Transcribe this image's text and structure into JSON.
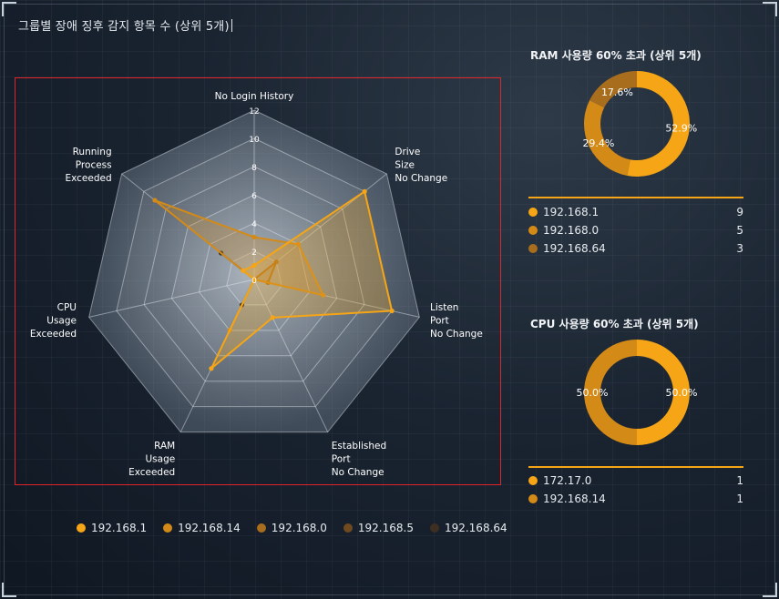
{
  "title": "그룹별 장애 징후 감지 항목 수 (상위 5개)",
  "colors": {
    "s1": "#f5a516",
    "s2": "#d48a17",
    "s3": "#a86e1e",
    "s4": "#6e4a1e",
    "s5": "#3e2f22"
  },
  "chart_data": [
    {
      "type": "radar",
      "title": "그룹별 장애 징후 감지 항목 수 (상위 5개)",
      "axes": [
        {
          "label": [
            "No Login History"
          ]
        },
        {
          "label": [
            "Drive",
            "Size",
            "No Change"
          ]
        },
        {
          "label": [
            "Listen",
            "Port",
            "No Change"
          ]
        },
        {
          "label": [
            "Established",
            "Port",
            "No Change"
          ]
        },
        {
          "label": [
            "RAM",
            "Usage",
            "Exceeded"
          ]
        },
        {
          "label": [
            "CPU",
            "Usage",
            "Exceeded"
          ]
        },
        {
          "label": [
            "Running",
            "Process",
            "Exceeded"
          ]
        }
      ],
      "rmax": 12,
      "ticks": [
        "0",
        "2",
        "4",
        "6",
        "8",
        "10",
        "12"
      ],
      "series": [
        {
          "name": "192.168.1",
          "values": [
            1,
            10,
            10,
            3,
            7,
            0,
            1
          ]
        },
        {
          "name": "192.168.14",
          "values": [
            3,
            4,
            5,
            0,
            4,
            0,
            9
          ]
        },
        {
          "name": "192.168.0",
          "values": [
            0,
            2,
            1,
            0,
            0,
            0,
            0
          ]
        },
        {
          "name": "192.168.5",
          "values": [
            0,
            0,
            0,
            0,
            0,
            0,
            0
          ]
        },
        {
          "name": "192.168.64",
          "values": [
            0,
            0,
            0,
            0,
            2,
            0,
            3
          ]
        }
      ],
      "legend_position": "bottom"
    },
    {
      "type": "pie",
      "title": "RAM 사용량 60% 초과 (상위 5개)",
      "labels": [
        "192.168.1",
        "192.168.0",
        "192.168.64"
      ],
      "values": [
        9,
        5,
        3
      ],
      "percent_labels": [
        "52.9%",
        "29.4%",
        "17.6%"
      ]
    },
    {
      "type": "pie",
      "title": "CPU 사용량 60% 초과 (상위 5개)",
      "labels": [
        "172.17.0",
        "192.168.14"
      ],
      "values": [
        1,
        1
      ],
      "percent_labels": [
        "50.0%",
        "50.0%"
      ]
    }
  ]
}
